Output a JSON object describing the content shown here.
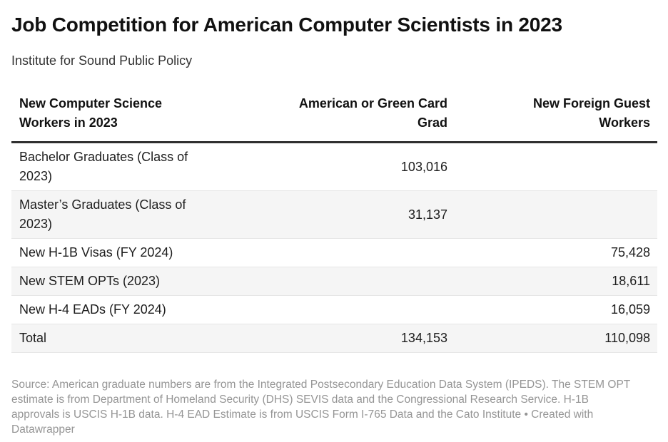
{
  "header": {
    "title": "Job Competition for American Computer Scientists in 2023",
    "subtitle": "Institute for Sound Public Policy"
  },
  "table": {
    "columns": {
      "col1": "New Computer Science Workers in 2023",
      "col2": "American or Green Card Grad",
      "col3": "New Foreign Guest Workers"
    },
    "rows": [
      {
        "label": "Bachelor Graduates (Class of 2023)",
        "american_or_green_card_grad": "103,016",
        "new_foreign_guest_workers": ""
      },
      {
        "label": "Master’s Graduates (Class of 2023)",
        "american_or_green_card_grad": "31,137",
        "new_foreign_guest_workers": ""
      },
      {
        "label": "New H-1B Visas (FY 2024)",
        "american_or_green_card_grad": "",
        "new_foreign_guest_workers": "75,428"
      },
      {
        "label": "New STEM OPTs (2023)",
        "american_or_green_card_grad": "",
        "new_foreign_guest_workers": "18,611"
      },
      {
        "label": "New H-4 EADs (FY 2024)",
        "american_or_green_card_grad": "",
        "new_foreign_guest_workers": "16,059"
      },
      {
        "label": "Total",
        "american_or_green_card_grad": "134,153",
        "new_foreign_guest_workers": "110,098"
      }
    ]
  },
  "footer": {
    "source": "Source: American graduate numbers are from the Integrated Postsecondary Education Data System (IPEDS). The STEM OPT estimate is from Department of Homeland Security (DHS) SEVIS data and the Congressional Research Service. H-1B approvals is USCIS H-1B data. H-4 EAD Estimate is from USCIS Form I-765 Data and the Cato Institute • Created with Datawrapper"
  },
  "colors": {
    "title_text": "#111111",
    "body_text": "#1d1d1d",
    "header_rule": "#2f2f2f",
    "row_divider": "#e6e6e6",
    "zebra_stripe": "#f5f5f5",
    "footer_text": "#959595",
    "background": "#ffffff"
  },
  "chart_data": {
    "type": "table",
    "title": "Job Competition for American Computer Scientists in 2023",
    "subtitle": "Institute for Sound Public Policy",
    "columns": [
      "New Computer Science Workers in 2023",
      "American or Green Card Grad",
      "New Foreign Guest Workers"
    ],
    "rows": [
      {
        "category": "Bachelor Graduates (Class of 2023)",
        "american_or_green_card_grad": 103016,
        "new_foreign_guest_workers": null
      },
      {
        "category": "Master’s Graduates (Class of 2023)",
        "american_or_green_card_grad": 31137,
        "new_foreign_guest_workers": null
      },
      {
        "category": "New H-1B Visas (FY 2024)",
        "american_or_green_card_grad": null,
        "new_foreign_guest_workers": 75428
      },
      {
        "category": "New STEM OPTs (2023)",
        "american_or_green_card_grad": null,
        "new_foreign_guest_workers": 18611
      },
      {
        "category": "New H-4 EADs (FY 2024)",
        "american_or_green_card_grad": null,
        "new_foreign_guest_workers": 16059
      },
      {
        "category": "Total",
        "american_or_green_card_grad": 134153,
        "new_foreign_guest_workers": 110098
      }
    ],
    "totals": {
      "american_or_green_card_grad": 134153,
      "new_foreign_guest_workers": 110098
    },
    "source": "Source: American graduate numbers are from the Integrated Postsecondary Education Data System (IPEDS). The STEM OPT estimate is from Department of Homeland Security (DHS) SEVIS data and the Congressional Research Service. H-1B approvals is USCIS H-1B data. H-4 EAD Estimate is from USCIS Form I-765 Data and the Cato Institute",
    "created_with": "Datawrapper",
    "layout": {
      "zebra_striping": true,
      "value_alignment": "right",
      "header_rule": true
    }
  }
}
